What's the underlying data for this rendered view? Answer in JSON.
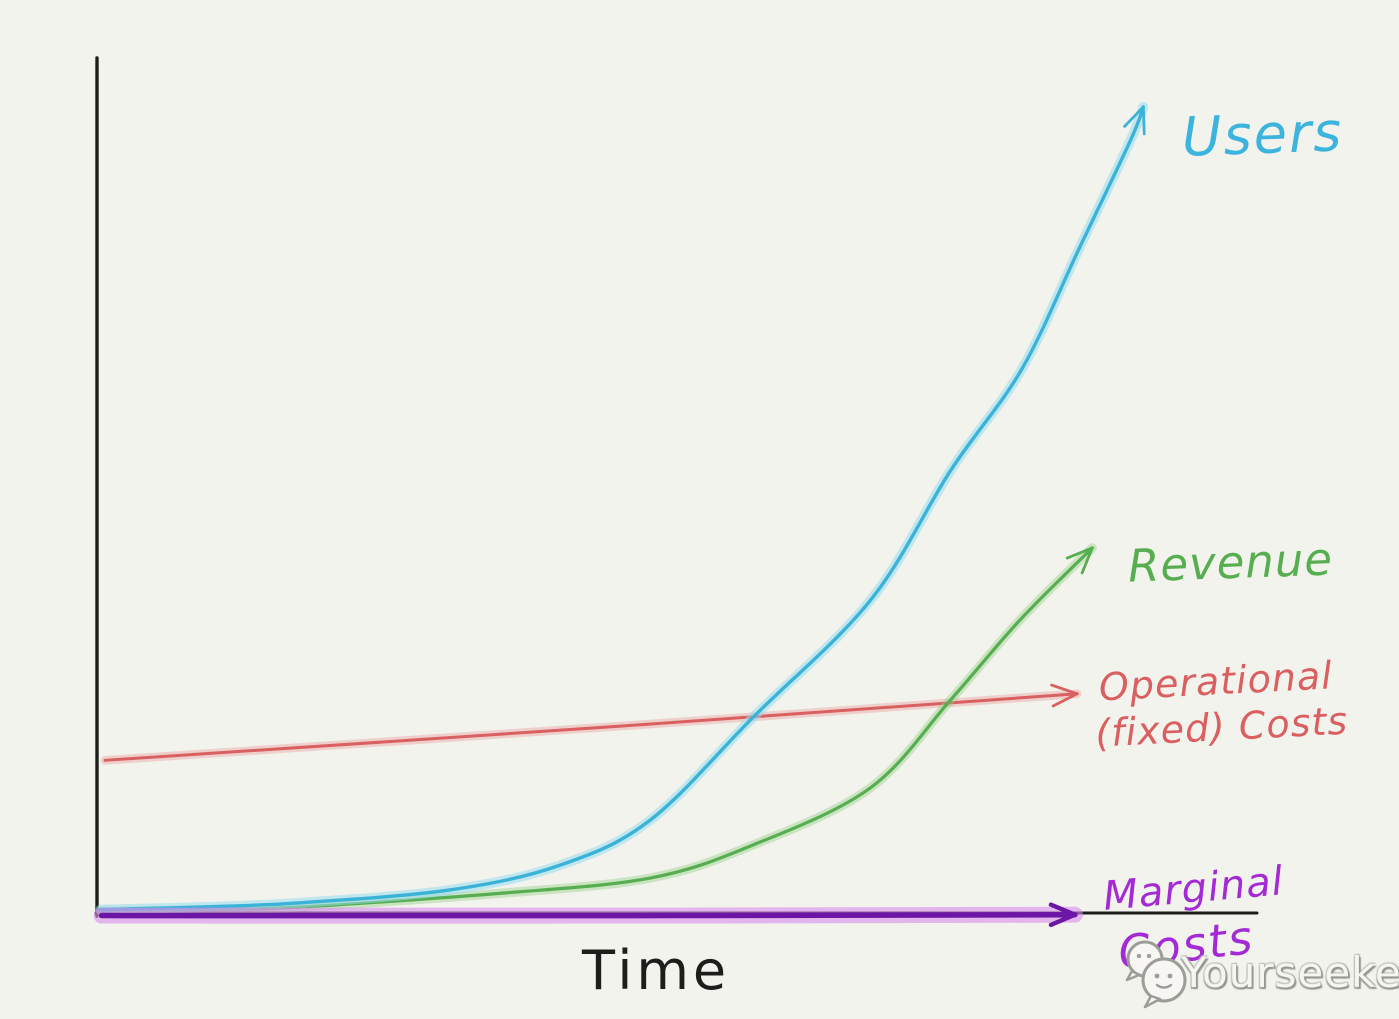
{
  "page": {
    "background_color": "#f3f3ed",
    "ink_color": "#1d1d1b"
  },
  "chart_data": {
    "type": "line",
    "style": "hand-drawn sketch",
    "title": "",
    "xlabel": "Time",
    "ylabel": "",
    "x_range": [
      0,
      1
    ],
    "y_range": [
      0,
      1
    ],
    "grid": false,
    "axes_ticks": [],
    "legend_position": "inline labels at end of each line with hand-drawn arrows",
    "series": [
      {
        "name": "Users",
        "color": "#3bb3d8",
        "glow": "rgba(150,218,238,0.55)",
        "stroke_width": 3.4,
        "arrow": true,
        "shape": "exponential growth, steepest curve",
        "points": [
          [
            0.003,
            0.004
          ],
          [
            0.09,
            0.007
          ],
          [
            0.175,
            0.012
          ],
          [
            0.304,
            0.027
          ],
          [
            0.399,
            0.056
          ],
          [
            0.477,
            0.109
          ],
          [
            0.566,
            0.23
          ],
          [
            0.667,
            0.367
          ],
          [
            0.736,
            0.519
          ],
          [
            0.797,
            0.637
          ],
          [
            0.846,
            0.777
          ],
          [
            0.891,
            0.906
          ],
          [
            0.902,
            0.945
          ]
        ]
      },
      {
        "name": "Revenue",
        "color": "#57ae50",
        "glow": "rgba(140,205,130,0.40)",
        "stroke_width": 3.2,
        "arrow": true,
        "shape": "exponential growth, lagging the Users curve",
        "points": [
          [
            0.003,
            0.002
          ],
          [
            0.1,
            0.004
          ],
          [
            0.175,
            0.007
          ],
          [
            0.347,
            0.023
          ],
          [
            0.477,
            0.041
          ],
          [
            0.566,
            0.08
          ],
          [
            0.667,
            0.147
          ],
          [
            0.736,
            0.25
          ],
          [
            0.796,
            0.344
          ],
          [
            0.858,
            0.428
          ]
        ]
      },
      {
        "name": "Operational (fixed) Costs",
        "color": "#d96060",
        "glow": "rgba(235,150,150,0.38)",
        "stroke_width": 3.0,
        "arrow": true,
        "shape": "nearly flat straight line, very slight upward slope",
        "points": [
          [
            0.007,
            0.179
          ],
          [
            0.45,
            0.219
          ],
          [
            0.845,
            0.257
          ]
        ]
      },
      {
        "name": "Marginal Costs",
        "color": "#6b16a4",
        "glow": "rgba(216,140,236,0.60)",
        "stroke_width": 5.5,
        "arrow": true,
        "shape": "flat line at zero, hugging the x-axis",
        "points": [
          [
            0.004,
            -0.003
          ],
          [
            0.5,
            -0.003
          ],
          [
            0.843,
            -0.002
          ]
        ]
      }
    ]
  },
  "labels": {
    "users": "Users",
    "revenue": "Revenue",
    "operational_line1": "Operational",
    "operational_line2": "(fixed) Costs",
    "marginal_line1": "Marginal",
    "marginal_line2": "Costs",
    "time": "Time"
  },
  "label_colors": {
    "users": "#3db4dd",
    "revenue": "#57ae50",
    "operational": "#d95f60",
    "marginal": "#a32ad4",
    "time": "#1d1d1b"
  },
  "watermark": {
    "text": "Yourseeker",
    "icon": "chat-bubbles-icon",
    "icon_stroke_color": "#9c9c98",
    "icon_fill_color": "#f7f6f2"
  }
}
